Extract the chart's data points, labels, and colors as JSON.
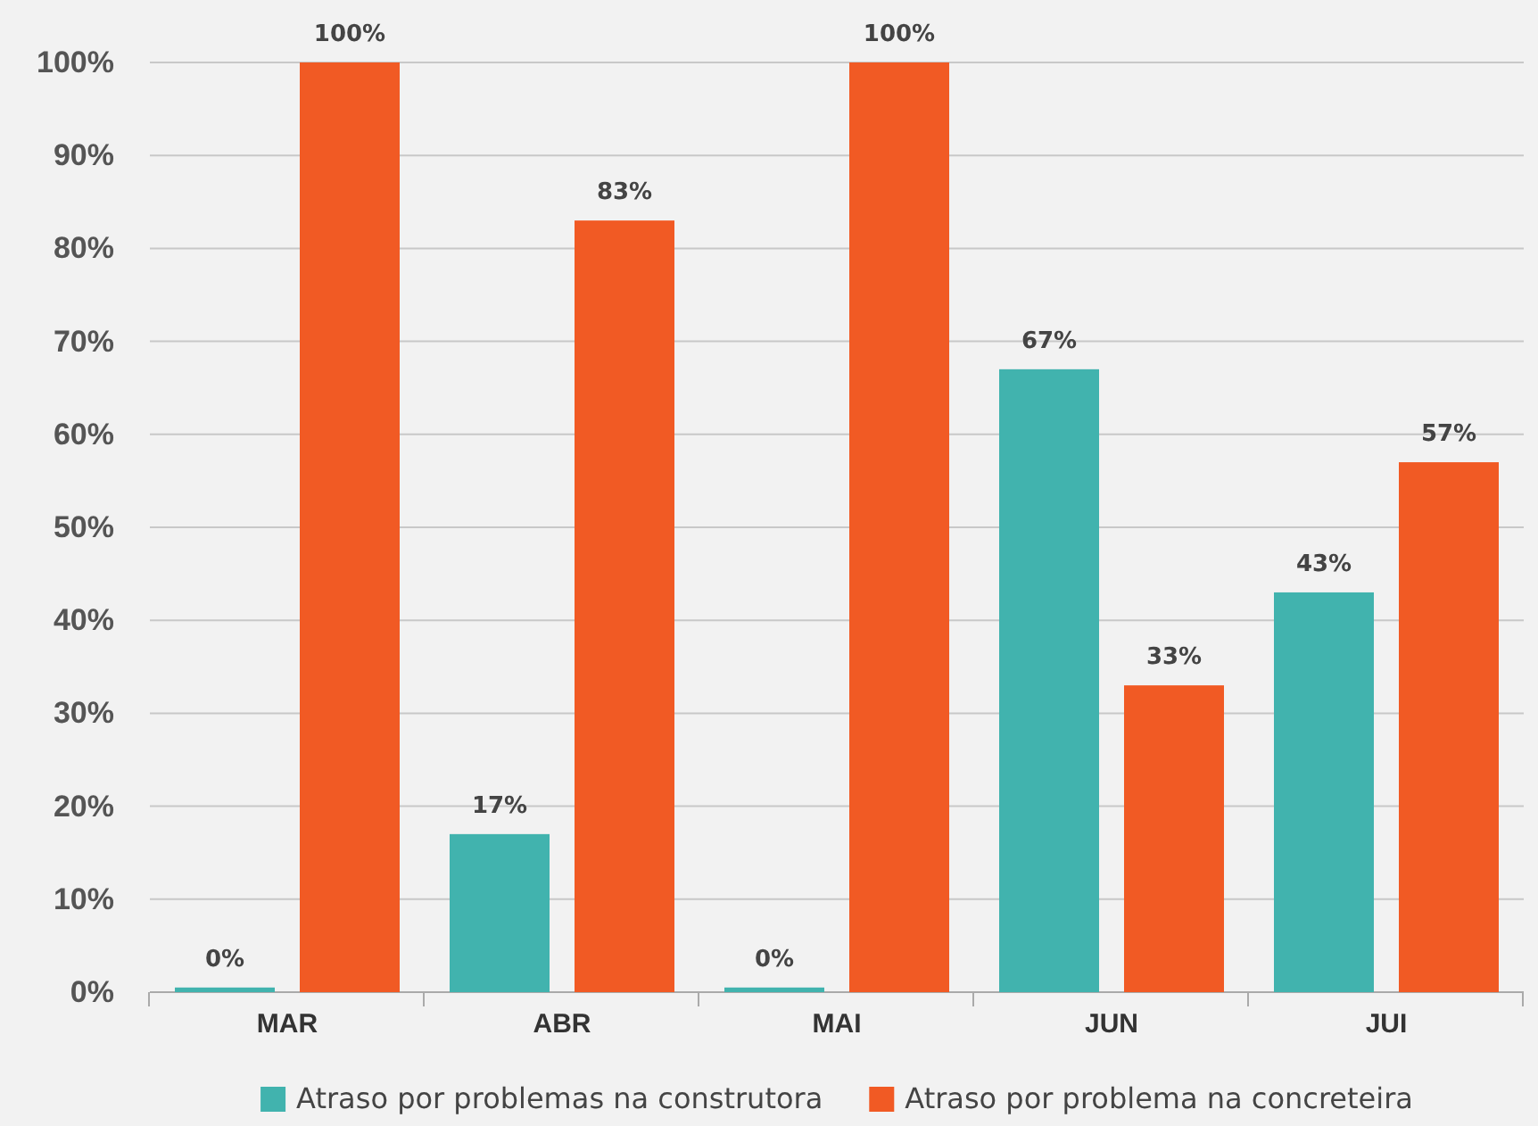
{
  "chart_data": {
    "type": "bar",
    "categories": [
      "MAR",
      "ABR",
      "MAI",
      "JUN",
      "JUI"
    ],
    "series": [
      {
        "name": "Atraso por problemas na construtora",
        "color": "#41b3ae",
        "values": [
          0.5,
          17,
          0.5,
          67,
          43
        ],
        "value_labels": [
          "0%",
          "17%",
          "0%",
          "67%",
          "43%"
        ]
      },
      {
        "name": "Atraso por problema na concreteira",
        "color": "#f15a24",
        "values": [
          100,
          83,
          100,
          33,
          57
        ],
        "value_labels": [
          "100%",
          "83%",
          "100%",
          "33%",
          "57%"
        ]
      }
    ],
    "ylim": [
      0,
      100
    ],
    "yticks": [
      {
        "value": 0,
        "label": "0%"
      },
      {
        "value": 10,
        "label": "10%"
      },
      {
        "value": 20,
        "label": "20%"
      },
      {
        "value": 30,
        "label": "30%"
      },
      {
        "value": 40,
        "label": "40%"
      },
      {
        "value": 50,
        "label": "50%"
      },
      {
        "value": 60,
        "label": "60%"
      },
      {
        "value": 70,
        "label": "70%"
      },
      {
        "value": 80,
        "label": "80%"
      },
      {
        "value": 90,
        "label": "90%"
      },
      {
        "value": 100,
        "label": "100%"
      }
    ],
    "grid": "y",
    "legend": "bottom"
  }
}
